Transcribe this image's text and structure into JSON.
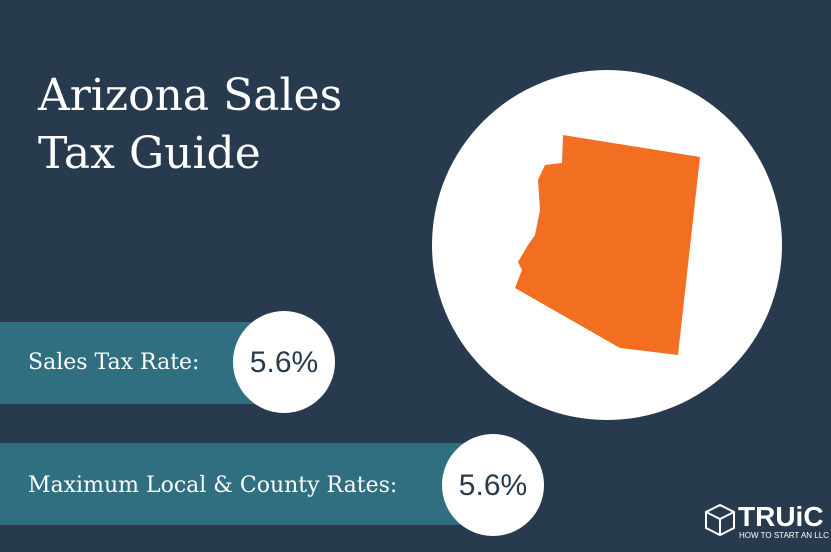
{
  "header": {
    "title_lines": [
      "Arizona Sales",
      "Tax Guide"
    ]
  },
  "rows": [
    {
      "label": "Sales Tax Rate:",
      "value": "5.6%"
    },
    {
      "label": "Maximum Local & County Rates:",
      "value": "5.6%"
    }
  ],
  "logo": {
    "name": "TRUiC",
    "tagline": "HOW TO START AN LLC"
  }
}
